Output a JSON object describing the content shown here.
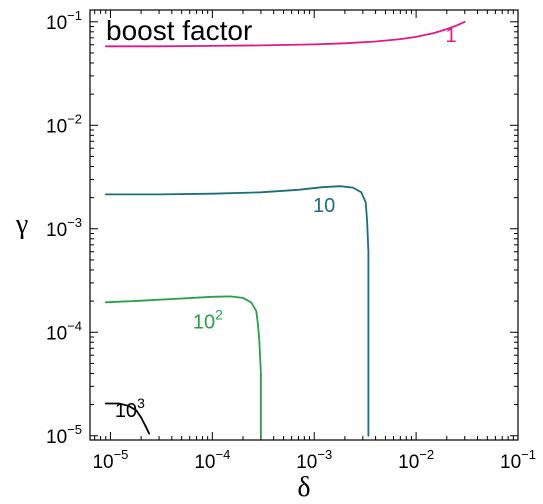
{
  "chart_data": {
    "type": "contour",
    "annotation": "boost factor",
    "xlabel": "δ",
    "ylabel": "γ",
    "x_scale": "log",
    "y_scale": "log",
    "xlim": [
      6.3e-06,
      0.1
    ],
    "ylim": [
      9.1e-06,
      0.13
    ],
    "grid": false,
    "x_ticks": [
      {
        "value": 1e-05,
        "base": "10",
        "exp": "−5"
      },
      {
        "value": 0.0001,
        "base": "10",
        "exp": "−4"
      },
      {
        "value": 0.001,
        "base": "10",
        "exp": "−3"
      },
      {
        "value": 0.01,
        "base": "10",
        "exp": "−2"
      },
      {
        "value": 0.1,
        "base": "10",
        "exp": "−1"
      }
    ],
    "y_ticks": [
      {
        "value": 1e-05,
        "base": "10",
        "exp": "−5"
      },
      {
        "value": 0.0001,
        "base": "10",
        "exp": "−4"
      },
      {
        "value": 0.001,
        "base": "10",
        "exp": "−3"
      },
      {
        "value": 0.01,
        "base": "10",
        "exp": "−2"
      },
      {
        "value": 0.1,
        "base": "10",
        "exp": "−1"
      }
    ],
    "series": [
      {
        "name": "contour-1",
        "level_base": "1",
        "level_exp": "",
        "color": "#e0198a",
        "label_at": [
          0.022,
          0.064
        ],
        "points": [
          [
            9e-06,
            0.058
          ],
          [
            3e-05,
            0.058
          ],
          [
            0.0001,
            0.0585
          ],
          [
            0.0003,
            0.0592
          ],
          [
            0.001,
            0.0605
          ],
          [
            0.002,
            0.062
          ],
          [
            0.004,
            0.0645
          ],
          [
            0.007,
            0.068
          ],
          [
            0.01,
            0.0715
          ],
          [
            0.015,
            0.078
          ],
          [
            0.02,
            0.085
          ],
          [
            0.025,
            0.092
          ],
          [
            0.03,
            0.1
          ]
        ]
      },
      {
        "name": "contour-10",
        "level_base": "10",
        "level_exp": "",
        "color": "#1a6f78",
        "label_at": [
          0.00125,
          0.00145
        ],
        "points": [
          [
            9e-06,
            0.00215
          ],
          [
            3e-05,
            0.00215
          ],
          [
            0.0001,
            0.00218
          ],
          [
            0.0003,
            0.00225
          ],
          [
            0.0007,
            0.00238
          ],
          [
            0.0012,
            0.00252
          ],
          [
            0.0018,
            0.00258
          ],
          [
            0.0024,
            0.0025
          ],
          [
            0.0029,
            0.00225
          ],
          [
            0.0032,
            0.0018
          ],
          [
            0.0033,
            0.0012
          ],
          [
            0.0034,
            0.0006
          ],
          [
            0.0034,
            0.0002
          ],
          [
            0.0034,
            5e-05
          ],
          [
            0.0034,
            1e-05
          ]
        ]
      },
      {
        "name": "contour-100",
        "level_base": "10",
        "level_exp": "2",
        "color": "#27a048",
        "label_at": [
          9.05e-05,
          0.000109
        ],
        "points": [
          [
            9e-06,
            0.000195
          ],
          [
            2e-05,
            0.000202
          ],
          [
            5e-05,
            0.000212
          ],
          [
            0.0001,
            0.00022
          ],
          [
            0.00015,
            0.000222
          ],
          [
            0.0002,
            0.000215
          ],
          [
            0.00024,
            0.000195
          ],
          [
            0.00027,
            0.00016
          ],
          [
            0.00028,
            0.00012
          ],
          [
            0.00029,
            8e-05
          ],
          [
            0.0003,
            4e-05
          ],
          [
            0.0003,
            2e-05
          ],
          [
            0.0003,
            1e-05
          ]
        ]
      },
      {
        "name": "contour-1000",
        "level_base": "10",
        "level_exp": "3",
        "color": "#000000",
        "label_at": [
          1.55e-05,
          1.51e-05
        ],
        "points": [
          [
            9e-06,
            2.05e-05
          ],
          [
            1.2e-05,
            2.05e-05
          ],
          [
            1.5e-05,
            1.95e-05
          ],
          [
            1.8e-05,
            1.75e-05
          ],
          [
            2e-05,
            1.5e-05
          ],
          [
            2.2e-05,
            1.25e-05
          ],
          [
            2.4e-05,
            1.05e-05
          ]
        ]
      }
    ]
  }
}
